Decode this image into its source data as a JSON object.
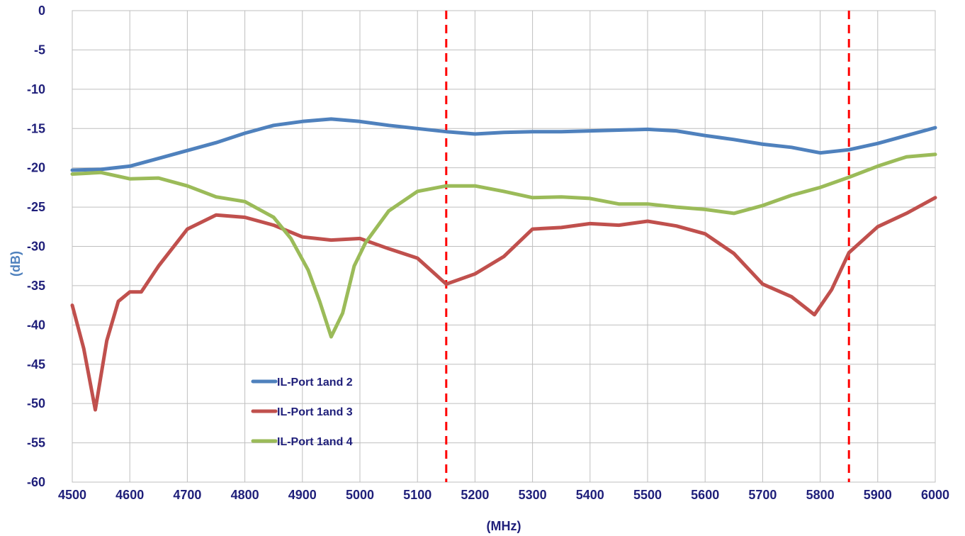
{
  "chart_data": {
    "type": "line",
    "xlabel": "(MHz)",
    "ylabel": "(dB)",
    "xlim": [
      4500,
      6000
    ],
    "ylim": [
      -60,
      0
    ],
    "x_ticks": [
      4500,
      4600,
      4700,
      4800,
      4900,
      5000,
      5100,
      5200,
      5300,
      5400,
      5500,
      5600,
      5700,
      5800,
      5900,
      6000
    ],
    "y_ticks": [
      0,
      -5,
      -10,
      -15,
      -20,
      -25,
      -30,
      -35,
      -40,
      -45,
      -50,
      -55,
      -60
    ],
    "grid": true,
    "legend_position": "lower-left-center",
    "markers": [
      {
        "type": "vertical-dashed",
        "x": 5150,
        "color": "#ff0000"
      },
      {
        "type": "vertical-dashed",
        "x": 5850,
        "color": "#ff0000"
      }
    ],
    "series": [
      {
        "name": "IL-Port 1and 2",
        "color": "#4f81bd",
        "x": [
          4500,
          4550,
          4600,
          4650,
          4700,
          4750,
          4800,
          4850,
          4900,
          4950,
          5000,
          5050,
          5100,
          5150,
          5200,
          5250,
          5300,
          5350,
          5400,
          5450,
          5500,
          5550,
          5600,
          5650,
          5700,
          5750,
          5800,
          5850,
          5900,
          5950,
          6000
        ],
        "y": [
          -20.3,
          -20.2,
          -19.8,
          -18.8,
          -17.8,
          -16.8,
          -15.6,
          -14.6,
          -14.1,
          -13.8,
          -14.1,
          -14.6,
          -15.0,
          -15.4,
          -15.7,
          -15.5,
          -15.4,
          -15.4,
          -15.3,
          -15.2,
          -15.1,
          -15.3,
          -15.9,
          -16.4,
          -17.0,
          -17.4,
          -18.1,
          -17.7,
          -16.9,
          -15.9,
          -14.9
        ]
      },
      {
        "name": "IL-Port 1and 3",
        "color": "#c0504d",
        "x": [
          4500,
          4520,
          4540,
          4560,
          4580,
          4600,
          4620,
          4650,
          4700,
          4750,
          4800,
          4850,
          4900,
          4950,
          5000,
          5050,
          5100,
          5150,
          5200,
          5250,
          5300,
          5350,
          5400,
          5450,
          5500,
          5550,
          5600,
          5650,
          5700,
          5750,
          5790,
          5820,
          5850,
          5900,
          5950,
          6000
        ],
        "y": [
          -37.5,
          -43.0,
          -50.8,
          -42.0,
          -37.0,
          -35.8,
          -35.8,
          -32.5,
          -27.8,
          -26.0,
          -26.3,
          -27.3,
          -28.8,
          -29.2,
          -29.0,
          -30.3,
          -31.5,
          -34.8,
          -33.5,
          -31.3,
          -27.8,
          -27.6,
          -27.1,
          -27.3,
          -26.8,
          -27.4,
          -28.4,
          -30.9,
          -34.8,
          -36.4,
          -38.7,
          -35.5,
          -30.8,
          -27.5,
          -25.8,
          -23.8
        ]
      },
      {
        "name": "IL-Port 1and 4",
        "color": "#9bbb59",
        "x": [
          4500,
          4550,
          4600,
          4650,
          4700,
          4750,
          4800,
          4850,
          4880,
          4910,
          4930,
          4950,
          4970,
          4990,
          5010,
          5050,
          5100,
          5150,
          5200,
          5250,
          5300,
          5350,
          5400,
          5450,
          5500,
          5550,
          5600,
          5650,
          5700,
          5750,
          5800,
          5850,
          5900,
          5950,
          6000
        ],
        "y": [
          -20.8,
          -20.6,
          -21.4,
          -21.3,
          -22.3,
          -23.7,
          -24.3,
          -26.3,
          -29.0,
          -33.0,
          -37.0,
          -41.5,
          -38.5,
          -32.5,
          -29.5,
          -25.5,
          -23.0,
          -22.3,
          -22.3,
          -23.0,
          -23.8,
          -23.7,
          -23.9,
          -24.6,
          -24.6,
          -25.0,
          -25.3,
          -25.8,
          -24.8,
          -23.5,
          -22.5,
          -21.2,
          -19.8,
          -18.6,
          -18.3
        ]
      }
    ]
  }
}
